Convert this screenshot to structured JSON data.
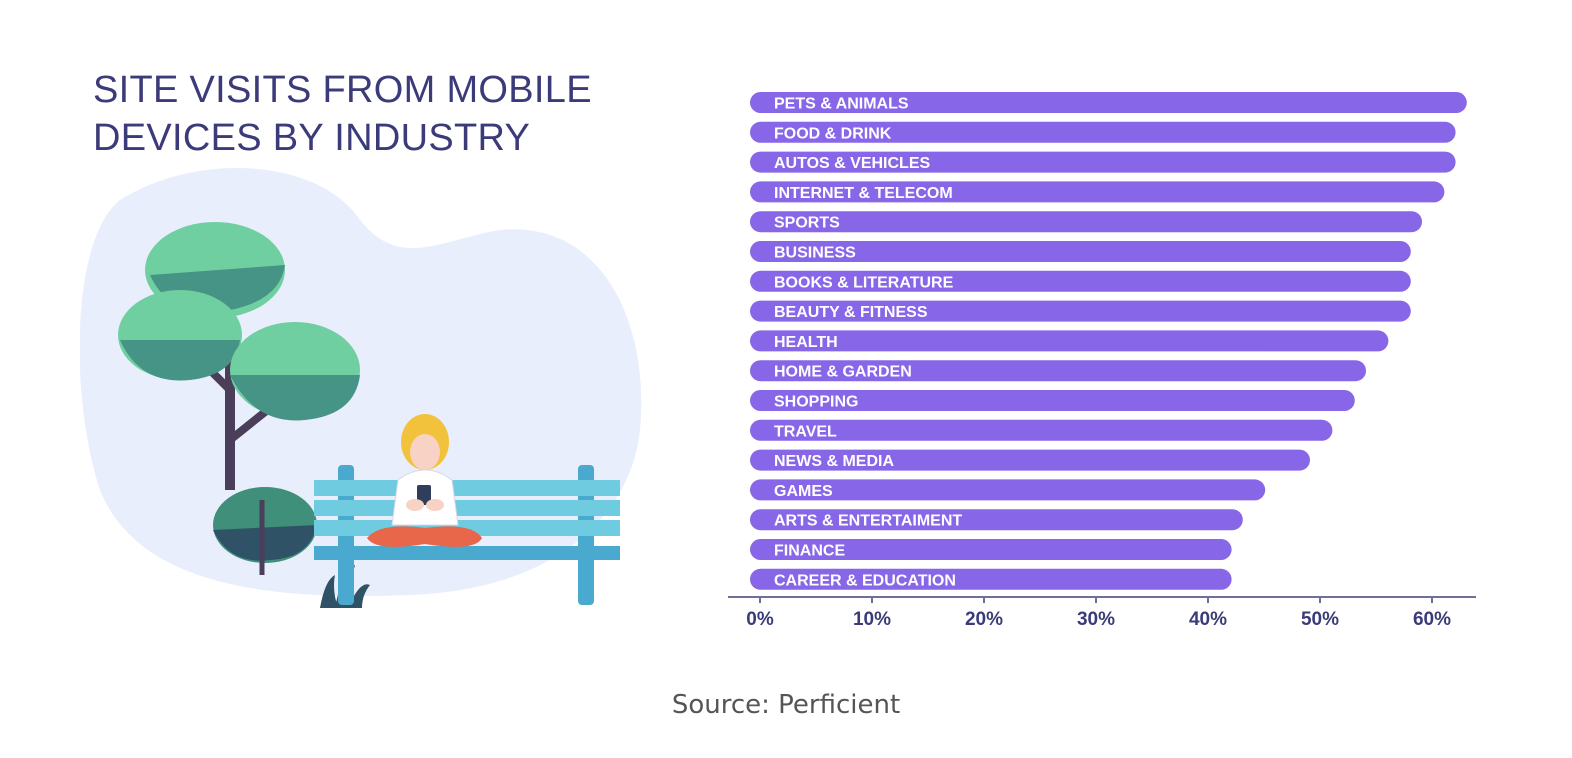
{
  "title": {
    "line1": "SITE VISITS FROM MOBILE",
    "line2": "DEVICES BY INDUSTRY"
  },
  "source": "Source: Perficient",
  "colors": {
    "bar": "#8766e8",
    "title": "#3b3b7a",
    "axis": "#6e6e96"
  },
  "chart_data": {
    "type": "bar",
    "orientation": "horizontal",
    "title": "SITE VISITS FROM MOBILE DEVICES BY INDUSTRY",
    "categories": [
      "PETS & ANIMALS",
      "FOOD & DRINK",
      "AUTOS & VEHICLES",
      "INTERNET & TELECOM",
      "SPORTS",
      "BUSINESS",
      "BOOKS & LITERATURE",
      "BEAUTY & FITNESS",
      "HEALTH",
      "HOME & GARDEN",
      "SHOPPING",
      "TRAVEL",
      "NEWS & MEDIA",
      "GAMES",
      "ARTS & ENTERTAIMENT",
      "FINANCE",
      "CAREER & EDUCATION"
    ],
    "values": [
      64,
      63,
      63,
      62,
      60,
      59,
      59,
      59,
      57,
      55,
      54,
      52,
      50,
      46,
      44,
      43,
      43
    ],
    "xticks": [
      "0%",
      "10%",
      "20%",
      "30%",
      "40%",
      "50%",
      "60%"
    ],
    "xlim": [
      0,
      64
    ],
    "grid": false,
    "legend": "none"
  }
}
